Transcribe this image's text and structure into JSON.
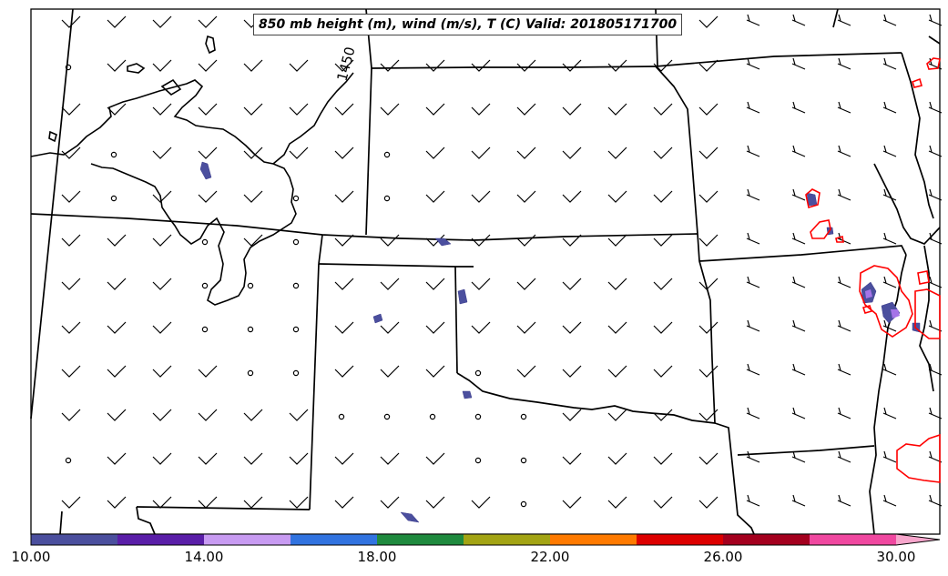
{
  "title": "850 mb height (m), wind (m/s), T (C) Valid: 201805171700",
  "contour_label": "1450",
  "colorbar": {
    "tick_labels": [
      "10.00",
      "14.00",
      "18.00",
      "22.00",
      "26.00",
      "30.00"
    ],
    "ticks": [
      10,
      14,
      18,
      22,
      26,
      30
    ],
    "range": [
      10,
      31
    ],
    "extend": "max",
    "colors": [
      "#4b4f9e",
      "#5a1ea8",
      "#c89bf2",
      "#3173e0",
      "#1f8a3e",
      "#a3a414",
      "#ff7a00",
      "#dd0000",
      "#a4001e",
      "#f048a0",
      "#f7a6cc"
    ]
  },
  "colors": {
    "state_lines": "#000000",
    "contour_1450": "#000000",
    "temp_contour": "#ff0000"
  }
}
